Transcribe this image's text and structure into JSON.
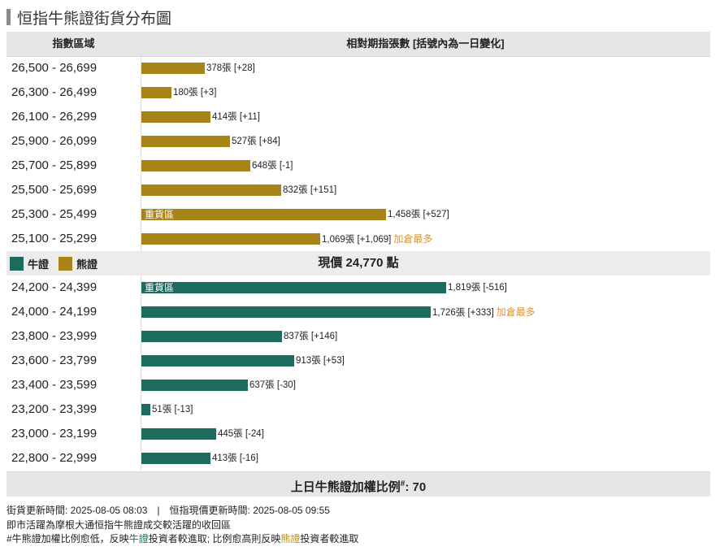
{
  "title": "恒指牛熊證街貨分布圖",
  "header": {
    "col1": "指數區域",
    "col2": "相對期指張數 [括號內為一日變化]"
  },
  "colors": {
    "bull": "#1e6b60",
    "bear": "#a88418",
    "note": "#e0932a"
  },
  "chart_data": {
    "type": "bar",
    "orientation": "horizontal",
    "unit": "張",
    "bear_rows": [
      {
        "range": "26,500 - 26,699",
        "value": 378,
        "label": "378張 [+28]"
      },
      {
        "range": "26,300 - 26,499",
        "value": 180,
        "label": "180張 [+3]"
      },
      {
        "range": "26,100 - 26,299",
        "value": 414,
        "label": "414張 [+11]"
      },
      {
        "range": "25,900 - 26,099",
        "value": 527,
        "label": "527張 [+84]"
      },
      {
        "range": "25,700 - 25,899",
        "value": 648,
        "label": "648張 [-1]"
      },
      {
        "range": "25,500 - 25,699",
        "value": 832,
        "label": "832張 [+151]"
      },
      {
        "range": "25,300 - 25,499",
        "value": 1458,
        "label": "1,458張 [+527]",
        "inner": "重貨區"
      },
      {
        "range": "25,100 - 25,299",
        "value": 1069,
        "label": "1,069張 [+1,069]",
        "note": "加倉最多"
      }
    ],
    "bull_rows": [
      {
        "range": "24,200 - 24,399",
        "value": 1819,
        "label": "1,819張 [-516]",
        "inner": "重貨區"
      },
      {
        "range": "24,000 - 24,199",
        "value": 1726,
        "label": "1,726張 [+333]",
        "note": "加倉最多"
      },
      {
        "range": "23,800 - 23,999",
        "value": 837,
        "label": "837張 [+146]"
      },
      {
        "range": "23,600 - 23,799",
        "value": 913,
        "label": "913張 [+53]"
      },
      {
        "range": "23,400 - 23,599",
        "value": 637,
        "label": "637張 [-30]"
      },
      {
        "range": "23,200 - 23,399",
        "value": 51,
        "label": "51張 [-13]"
      },
      {
        "range": "23,000 - 23,199",
        "value": 445,
        "label": "445張 [-24]"
      },
      {
        "range": "22,800 - 22,999",
        "value": 413,
        "label": "413張 [-16]"
      }
    ]
  },
  "legend": {
    "bull": "牛證",
    "bear": "熊證"
  },
  "current_price": "現價 24,770 點",
  "ratio": {
    "label": "上日牛熊證加權比例",
    "sup": "#",
    "value": ": 70"
  },
  "notes": {
    "line1": "街貨更新時間: 2025-08-05 08:03　|　恒指現價更新時間: 2025-08-05 09:55",
    "line2": "即市活躍為摩根大通恒指牛熊證成交較活躍的收回區",
    "line3_a": "#牛熊證加權比例愈低，反映",
    "line3_bull": "牛證",
    "line3_b": "投資者較進取; 比例愈高則反映",
    "line3_bear": "熊證",
    "line3_c": "投資者較進取"
  }
}
